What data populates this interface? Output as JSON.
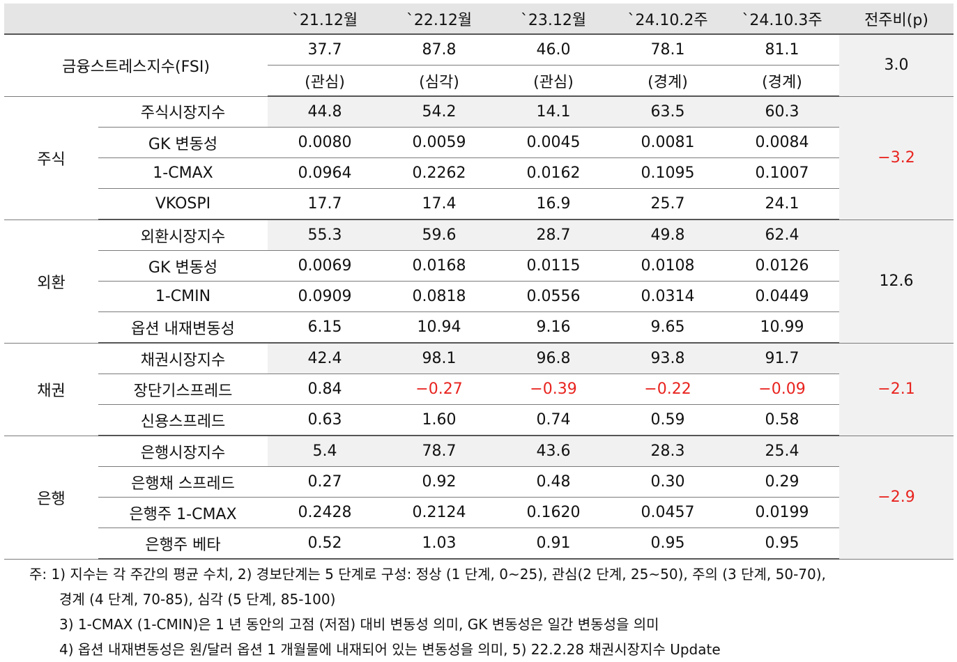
{
  "header": {
    "blank": "",
    "periods": [
      "`21.12월",
      "`22.12월",
      "`23.12월",
      "`24.10.2주",
      "`24.10.3주"
    ],
    "change": "전주비(p)"
  },
  "fsi": {
    "label": "금융스트레스지수(FSI)",
    "values": [
      "37.7",
      "87.8",
      "46.0",
      "78.1",
      "81.1"
    ],
    "levels": [
      "(관심)",
      "(심각)",
      "(관심)",
      "(경계)",
      "(경계)"
    ],
    "change": "3.0"
  },
  "groups": [
    {
      "name": "주식",
      "change": "−3.2",
      "change_negative": true,
      "rows": [
        {
          "label": "주식시장지수",
          "values": [
            "44.8",
            "54.2",
            "14.1",
            "63.5",
            "60.3"
          ]
        },
        {
          "label": "GK 변동성",
          "values": [
            "0.0080",
            "0.0059",
            "0.0045",
            "0.0081",
            "0.0084"
          ]
        },
        {
          "label": "1-CMAX",
          "values": [
            "0.0964",
            "0.2262",
            "0.0162",
            "0.1095",
            "0.1007"
          ]
        },
        {
          "label": "VKOSPI",
          "values": [
            "17.7",
            "17.4",
            "16.9",
            "25.7",
            "24.1"
          ]
        }
      ]
    },
    {
      "name": "외환",
      "change": "12.6",
      "change_negative": false,
      "rows": [
        {
          "label": "외환시장지수",
          "values": [
            "55.3",
            "59.6",
            "28.7",
            "49.8",
            "62.4"
          ]
        },
        {
          "label": "GK 변동성",
          "values": [
            "0.0069",
            "0.0168",
            "0.0115",
            "0.0108",
            "0.0126"
          ]
        },
        {
          "label": "1-CMIN",
          "values": [
            "0.0909",
            "0.0818",
            "0.0556",
            "0.0314",
            "0.0449"
          ]
        },
        {
          "label": "옵션 내재변동성",
          "values": [
            "6.15",
            "10.94",
            "9.16",
            "9.65",
            "10.99"
          ]
        }
      ]
    },
    {
      "name": "채권",
      "change": "−2.1",
      "change_negative": true,
      "rows": [
        {
          "label": "채권시장지수",
          "values": [
            "42.4",
            "98.1",
            "96.8",
            "93.8",
            "91.7"
          ]
        },
        {
          "label": "장단기스프레드",
          "values": [
            "0.84",
            "−0.27",
            "−0.39",
            "−0.22",
            "−0.09"
          ]
        },
        {
          "label": "신용스프레드",
          "values": [
            "0.63",
            "1.60",
            "0.74",
            "0.59",
            "0.58"
          ]
        }
      ]
    },
    {
      "name": "은행",
      "change": "−2.9",
      "change_negative": true,
      "rows": [
        {
          "label": "은행시장지수",
          "values": [
            "5.4",
            "78.7",
            "43.6",
            "28.3",
            "25.4"
          ]
        },
        {
          "label": "은행채 스프레드",
          "values": [
            "0.27",
            "0.92",
            "0.48",
            "0.30",
            "0.29"
          ]
        },
        {
          "label": "은행주 1-CMAX",
          "values": [
            "0.2428",
            "0.2124",
            "0.1620",
            "0.0457",
            "0.0199"
          ]
        },
        {
          "label": "은행주 베타",
          "values": [
            "0.52",
            "1.03",
            "0.91",
            "0.95",
            "0.95"
          ]
        }
      ]
    }
  ],
  "notes": [
    "주: 1) 지수는 각 주간의 평균 수치, 2) 경보단계는 5 단계로 구성: 정상 (1 단계, 0~25), 관심(2 단계, 25~50), 주의 (3 단계, 50-70),",
    "경계 (4 단계, 70-85), 심각 (5 단계, 85-100)",
    "3) 1-CMAX (1-CMIN)은 1 년 동안의 고점 (저점) 대비 변동성 의미, GK 변동성은 일간 변동성을 의미",
    "4) 옵션 내재변동성은 원/달러 옵션 1 개월물에 내재되어 있는 변동성을 의미, 5) 22.2.28 채권시장지수 Update"
  ],
  "colors": {
    "negative": "#e8231e",
    "header_bg": "#e5e5e5",
    "shade_bg": "#f1f1f1"
  }
}
